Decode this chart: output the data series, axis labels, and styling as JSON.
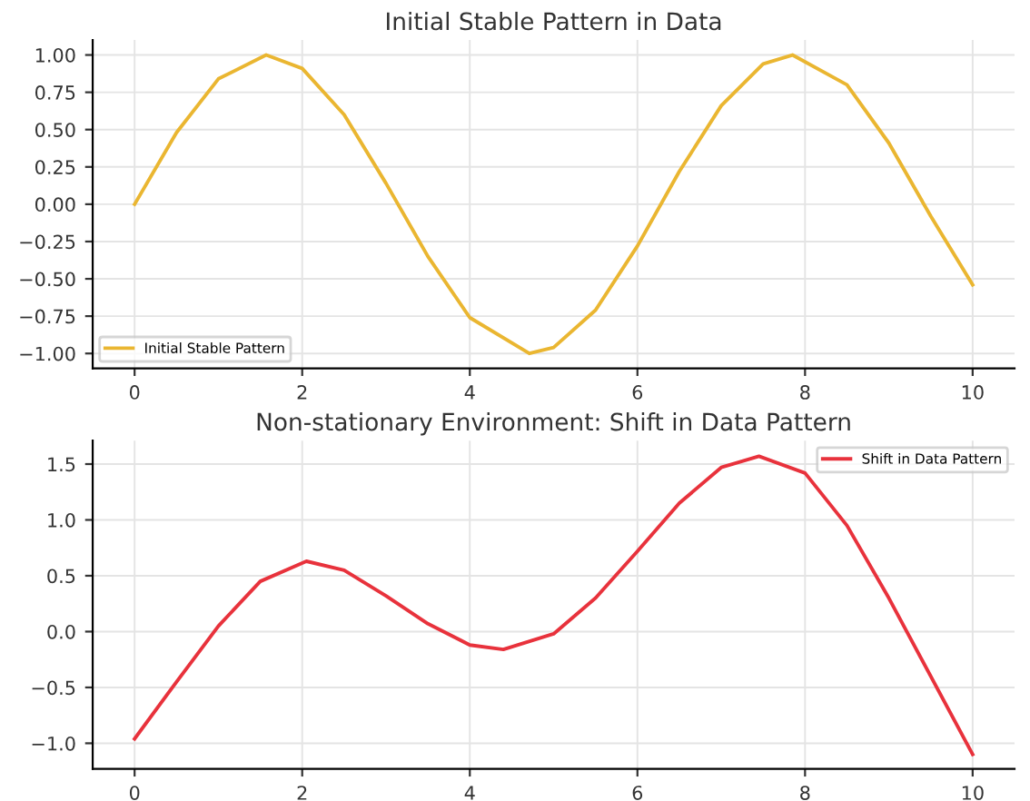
{
  "chart_data": [
    {
      "type": "line",
      "title": "Initial Stable Pattern in Data",
      "x": [
        0,
        0.5,
        1,
        1.57,
        2,
        2.5,
        3,
        3.5,
        4,
        4.71,
        5,
        5.5,
        6,
        6.5,
        7,
        7.5,
        7.85,
        8.5,
        9,
        9.5,
        10
      ],
      "series": [
        {
          "name": "Initial Stable Pattern",
          "color": "#eab631",
          "values": [
            0,
            0.48,
            0.84,
            1.0,
            0.91,
            0.6,
            0.14,
            -0.35,
            -0.76,
            -1.0,
            -0.96,
            -0.71,
            -0.28,
            0.22,
            0.66,
            0.94,
            1.0,
            0.8,
            0.41,
            -0.08,
            -0.54
          ]
        }
      ],
      "xlim": [
        -0.5,
        10.5
      ],
      "xticks": [
        0,
        2,
        4,
        6,
        8,
        10
      ],
      "ylim": [
        -1.1,
        1.1
      ],
      "yticks": [
        {
          "value": -1,
          "label": "−1.00"
        },
        {
          "value": -0.75,
          "label": "−0.75"
        },
        {
          "value": -0.5,
          "label": "−0.50"
        },
        {
          "value": -0.25,
          "label": "−0.25"
        },
        {
          "value": 0,
          "label": "0.00"
        },
        {
          "value": 0.25,
          "label": "0.25"
        },
        {
          "value": 0.5,
          "label": "0.50"
        },
        {
          "value": 0.75,
          "label": "0.75"
        },
        {
          "value": 1,
          "label": "1.00"
        }
      ],
      "grid": true,
      "legend": "bottom left"
    },
    {
      "type": "line",
      "title": "Non-stationary Environment: Shift in Data Pattern",
      "x": [
        0,
        0.5,
        1,
        1.5,
        2.05,
        2.5,
        3,
        3.5,
        4,
        4.4,
        5,
        5.5,
        6,
        6.5,
        7,
        7.45,
        8,
        8.5,
        9,
        9.5,
        10
      ],
      "series": [
        {
          "name": "Shift in Data Pattern",
          "color": "#e8323c",
          "values": [
            -0.96,
            -0.45,
            0.05,
            0.45,
            0.63,
            0.55,
            0.32,
            0.07,
            -0.12,
            -0.16,
            -0.02,
            0.3,
            0.72,
            1.15,
            1.47,
            1.57,
            1.42,
            0.95,
            0.3,
            -0.4,
            -1.1
          ]
        }
      ],
      "xlim": [
        -0.5,
        10.5
      ],
      "xticks": [
        0,
        2,
        4,
        6,
        8,
        10
      ],
      "ylim": [
        -1.23,
        1.71
      ],
      "yticks": [
        {
          "value": -1,
          "label": "−1.0"
        },
        {
          "value": -0.5,
          "label": "−0.5"
        },
        {
          "value": 0,
          "label": "0.0"
        },
        {
          "value": 0.5,
          "label": "0.5"
        },
        {
          "value": 1,
          "label": "1.0"
        },
        {
          "value": 1.5,
          "label": "1.5"
        }
      ],
      "grid": true,
      "legend": "top right"
    }
  ]
}
